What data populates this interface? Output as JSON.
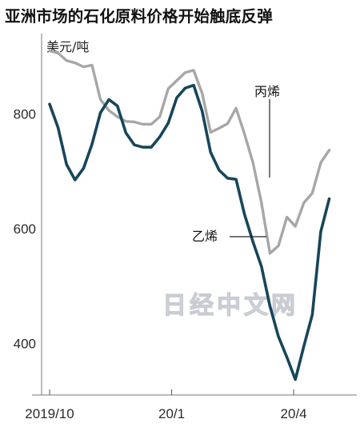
{
  "title": "亚洲市场的石化原料价格开始触底反弹",
  "watermark": "日经中文网",
  "chart_data": {
    "type": "line",
    "title": "亚洲市场的石化原料价格开始触底反弹",
    "ylabel": "美元/吨",
    "xlabel": "",
    "ylim": [
      310,
      940
    ],
    "yticks": [
      400,
      600,
      800
    ],
    "xlim": [
      0,
      29.5
    ],
    "xticks": [
      {
        "x": 0,
        "label": "2019/10"
      },
      {
        "x": 12,
        "label": "20/1"
      },
      {
        "x": 24,
        "label": "20/4"
      }
    ],
    "grid": false,
    "series": [
      {
        "name": "丙烯",
        "color": "#a7a7a7",
        "points": [
          [
            0,
            910
          ],
          [
            1,
            906
          ],
          [
            2,
            893
          ],
          [
            3,
            889
          ],
          [
            4,
            882
          ],
          [
            5,
            885
          ],
          [
            6,
            825
          ],
          [
            7,
            806
          ],
          [
            8,
            795
          ],
          [
            9,
            787
          ],
          [
            10,
            786
          ],
          [
            11,
            782
          ],
          [
            12,
            782
          ],
          [
            13,
            795
          ],
          [
            14,
            844
          ],
          [
            15,
            858
          ],
          [
            16,
            872
          ],
          [
            17,
            876
          ],
          [
            18,
            836
          ],
          [
            19,
            768
          ],
          [
            20,
            775
          ],
          [
            21,
            783
          ],
          [
            22,
            810
          ],
          [
            23,
            765
          ],
          [
            24,
            715
          ],
          [
            25,
            645
          ],
          [
            26,
            557
          ],
          [
            27,
            570
          ],
          [
            28,
            620
          ],
          [
            29,
            604
          ],
          [
            30,
            645
          ],
          [
            31,
            662
          ],
          [
            32,
            715
          ],
          [
            33,
            737
          ]
        ]
      },
      {
        "name": "乙烯",
        "color": "#17465a",
        "points": [
          [
            0,
            817
          ],
          [
            1,
            776
          ],
          [
            2,
            712
          ],
          [
            3,
            685
          ],
          [
            4,
            705
          ],
          [
            5,
            747
          ],
          [
            6,
            802
          ],
          [
            7,
            825
          ],
          [
            8,
            814
          ],
          [
            9,
            767
          ],
          [
            10,
            746
          ],
          [
            11,
            742
          ],
          [
            12,
            742
          ],
          [
            13,
            760
          ],
          [
            14,
            784
          ],
          [
            15,
            828
          ],
          [
            16,
            845
          ],
          [
            17,
            850
          ],
          [
            18,
            805
          ],
          [
            19,
            733
          ],
          [
            20,
            702
          ],
          [
            21,
            688
          ],
          [
            22,
            686
          ],
          [
            23,
            625
          ],
          [
            24,
            577
          ],
          [
            25,
            534
          ],
          [
            26,
            465
          ],
          [
            27,
            412
          ],
          [
            28,
            376
          ],
          [
            29,
            337
          ],
          [
            30,
            395
          ],
          [
            31,
            450
          ],
          [
            32,
            595
          ],
          [
            33,
            652
          ]
        ]
      }
    ]
  }
}
